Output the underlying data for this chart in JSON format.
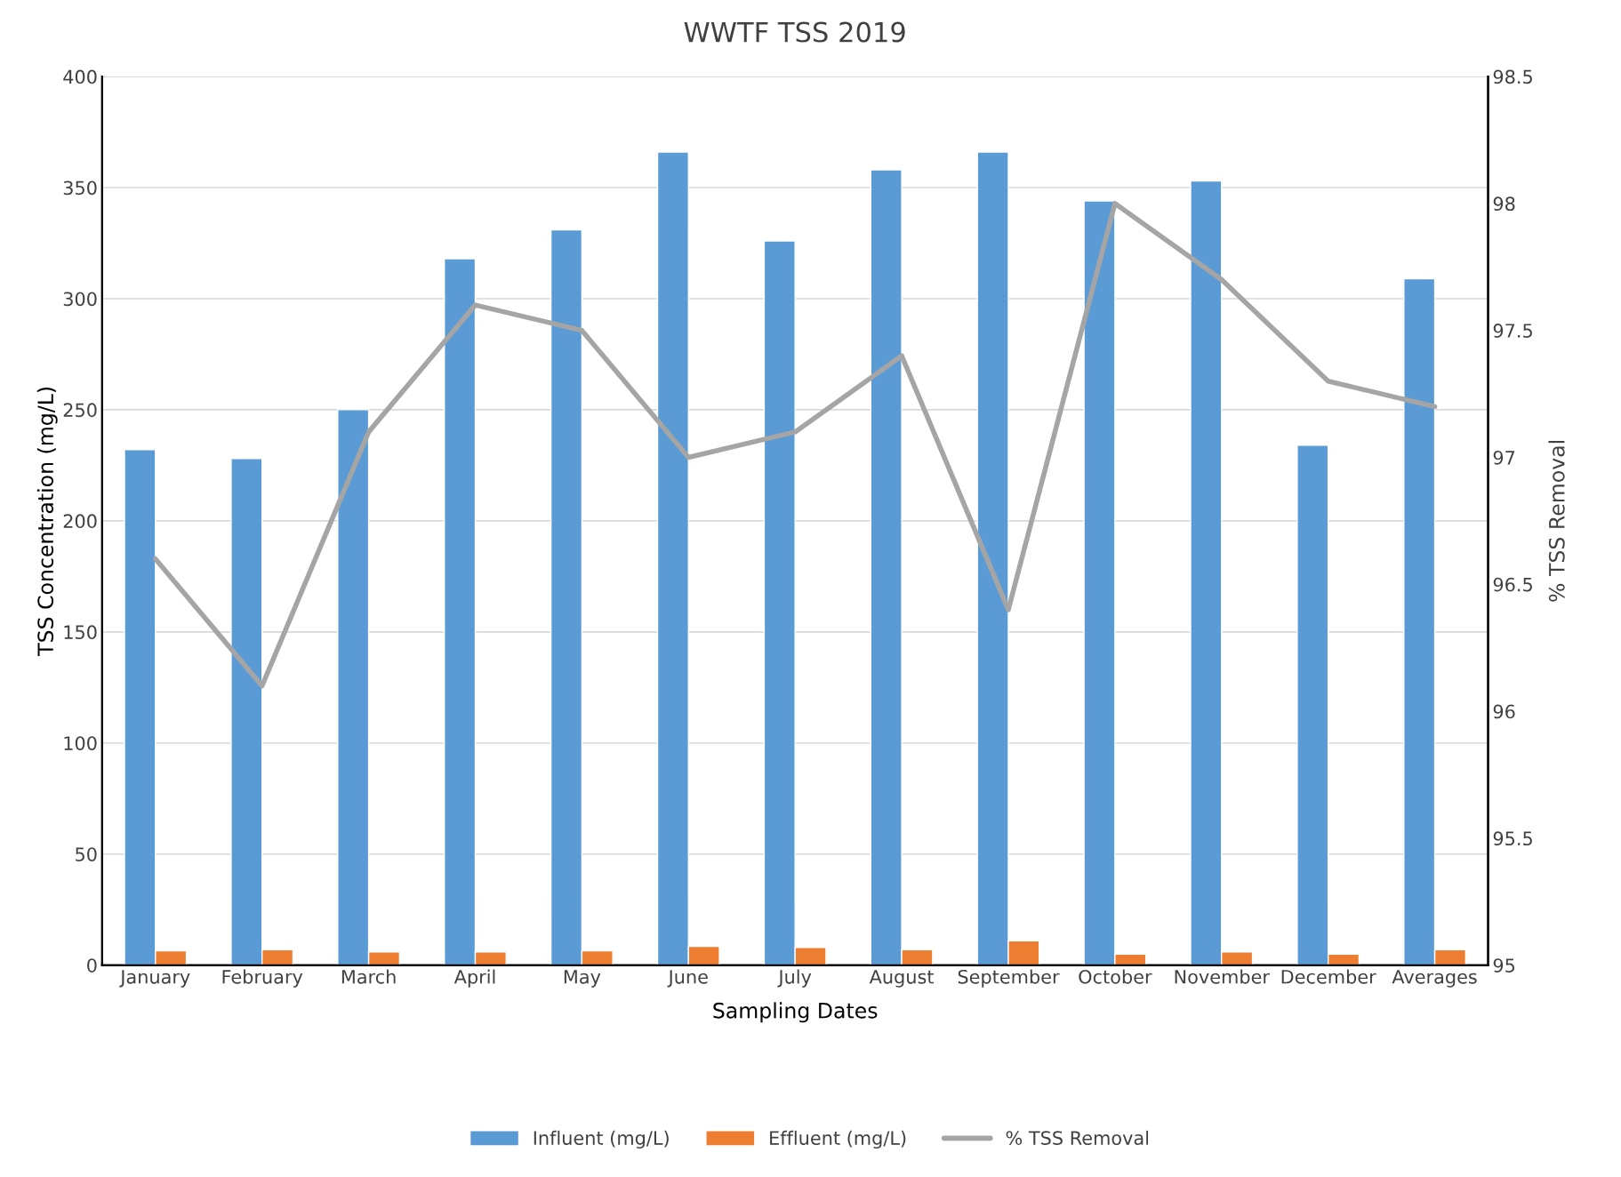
{
  "chart_data": {
    "type": "bar",
    "title": "WWTF TSS 2019",
    "xlabel": "Sampling Dates",
    "ylabel": "TSS Concentration (mg/L)",
    "y2label": "% TSS Removal",
    "categories": [
      "January",
      "February",
      "March",
      "April",
      "May",
      "June",
      "July",
      "August",
      "September",
      "October",
      "November",
      "December",
      "Averages"
    ],
    "series": [
      {
        "name": "Influent (mg/L)",
        "color": "#5b9bd5",
        "values": [
          232,
          228,
          250,
          318,
          331,
          366,
          326,
          358,
          366,
          344,
          353,
          234,
          309
        ]
      },
      {
        "name": "Effluent (mg/L)",
        "color": "#ed7d31",
        "values": [
          6.5,
          7,
          6,
          6,
          6.5,
          8.5,
          8,
          7,
          11,
          5,
          6,
          5,
          7
        ]
      },
      {
        "name": "% TSS Removal",
        "color": "#a5a5a5",
        "type": "line",
        "axis": "y2",
        "values": [
          96.6,
          96.1,
          97.1,
          97.6,
          97.5,
          97.0,
          97.1,
          97.4,
          96.4,
          98.0,
          97.7,
          97.3,
          97.2
        ]
      }
    ],
    "ylim": [
      0,
      400
    ],
    "yticks": [
      0,
      50,
      100,
      150,
      200,
      250,
      300,
      350,
      400
    ],
    "y2lim": [
      95,
      98.5
    ],
    "y2ticks": [
      95,
      95.5,
      96,
      96.5,
      97,
      97.5,
      98,
      98.5
    ],
    "grid": "y",
    "legend": "bottom"
  }
}
